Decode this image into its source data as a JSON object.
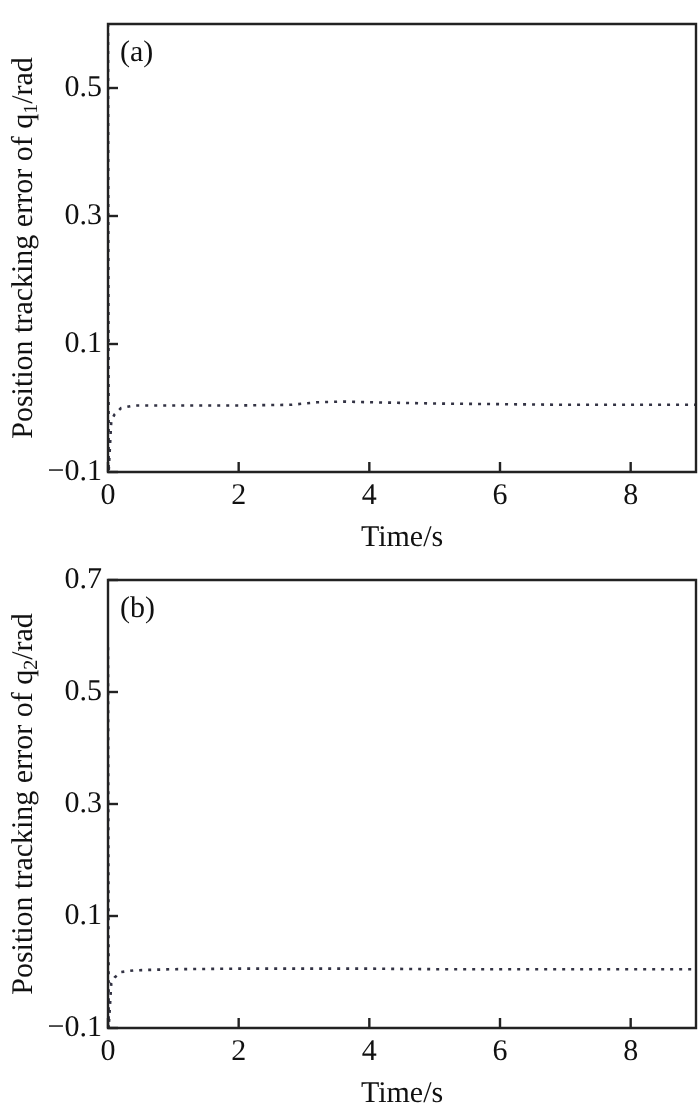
{
  "chart_data": [
    {
      "type": "line",
      "ylabel": "Position tracking error of q$_{1}$/rad",
      "xlabel": "Time/s",
      "annotations": [
        "(a)"
      ],
      "xlim": [
        0,
        9
      ],
      "xticks": [
        0,
        2,
        4,
        6,
        8
      ],
      "ylim": [
        -0.1,
        0.6
      ],
      "yticks": [
        {
          "value": -0.1,
          "label": "−0.1"
        },
        0.1,
        0.3,
        0.5
      ],
      "grid": false,
      "legend": false,
      "marker": "none",
      "line_style": "dotted",
      "series": [
        {
          "color": "#333344",
          "x": [
            0,
            0.01,
            0.05,
            0.1,
            0.2,
            0.4,
            1,
            2,
            2.8,
            3.2,
            3.6,
            4,
            5,
            6,
            7,
            8,
            9
          ],
          "values": [
            0.6,
            -0.1,
            -0.02,
            -0.01,
            0,
            0.004,
            0.004,
            0.004,
            0.005,
            0.009,
            0.01,
            0.009,
            0.007,
            0.006,
            0.005,
            0.005,
            0.005
          ]
        }
      ]
    },
    {
      "type": "line",
      "ylabel": "Position tracking error of q$_{2}$/rad",
      "xlabel": "Time/s",
      "annotations": [
        "(b)"
      ],
      "xlim": [
        0,
        9
      ],
      "xticks": [
        0,
        2,
        4,
        6,
        8
      ],
      "ylim": [
        -0.1,
        0.7
      ],
      "yticks": [
        {
          "value": -0.1,
          "label": "−0.1"
        },
        0.1,
        0.3,
        0.5,
        0.7
      ],
      "grid": false,
      "legend": false,
      "marker": "none",
      "line_style": "dotted",
      "series": [
        {
          "color": "#333344",
          "x": [
            0,
            0.01,
            0.05,
            0.1,
            0.2,
            0.4,
            1,
            2,
            3,
            4,
            5,
            6,
            7,
            8,
            9
          ],
          "values": [
            0.58,
            -0.1,
            -0.02,
            -0.01,
            0,
            0.003,
            0.005,
            0.006,
            0.006,
            0.006,
            0.005,
            0.005,
            0.005,
            0.005,
            0.005
          ]
        }
      ]
    }
  ]
}
